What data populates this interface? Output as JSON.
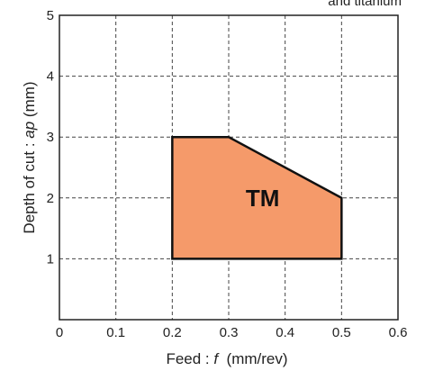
{
  "chart_data": {
    "type": "area",
    "xlabel_text": "Feed : ",
    "xlabel_var": "f",
    "xlabel_unit": "  (mm/rev)",
    "ylabel_text": "Depth of cut : ",
    "ylabel_var": "ap",
    "ylabel_unit": " (mm)",
    "xlim": [
      0,
      0.6
    ],
    "ylim": [
      0,
      5
    ],
    "x_ticks": [
      0,
      0.1,
      0.2,
      0.3,
      0.4,
      0.5,
      0.6
    ],
    "y_ticks": [
      1,
      2,
      3,
      4,
      5
    ],
    "x_tick_labels": [
      "0",
      "0.1",
      "0.2",
      "0.3",
      "0.4",
      "0.5",
      "0.6"
    ],
    "y_tick_labels": [
      "1",
      "2",
      "3",
      "4",
      "5"
    ],
    "grid": true,
    "regions": [
      {
        "name": "TM",
        "color": "#f59a6a",
        "polygon": [
          [
            0.2,
            1
          ],
          [
            0.2,
            3
          ],
          [
            0.3,
            3
          ],
          [
            0.5,
            2
          ],
          [
            0.5,
            1
          ]
        ],
        "label_pos": [
          0.36,
          2.0
        ]
      }
    ],
    "corner_note": "and titanium"
  }
}
